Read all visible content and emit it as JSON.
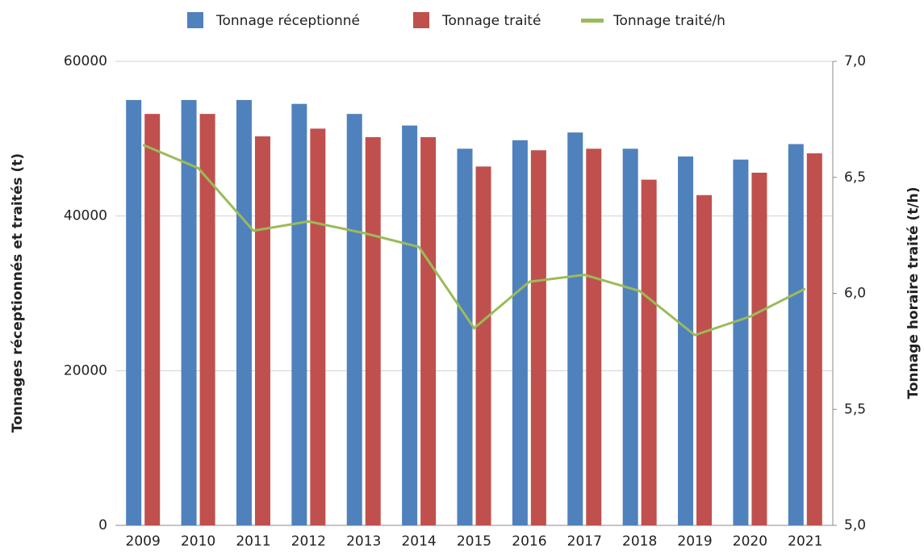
{
  "chart_data": {
    "type": "bar",
    "categories": [
      "2009",
      "2010",
      "2011",
      "2012",
      "2013",
      "2014",
      "2015",
      "2016",
      "2017",
      "2018",
      "2019",
      "2020",
      "2021"
    ],
    "series": [
      {
        "name": "Tonnage réceptionné",
        "color": "#4f81bd",
        "type": "bar",
        "values": [
          55000,
          55000,
          55000,
          54500,
          53200,
          51700,
          48700,
          49800,
          50800,
          48700,
          47700,
          47300,
          49300
        ]
      },
      {
        "name": "Tonnage traité",
        "color": "#c0504d",
        "type": "bar",
        "values": [
          53200,
          53200,
          50300,
          51300,
          50200,
          50200,
          46400,
          48500,
          48700,
          44700,
          42700,
          45600,
          48100
        ]
      },
      {
        "name": "Tonnage traité/h",
        "color": "#9bbb59",
        "type": "line",
        "axis": "y2",
        "values": [
          6.64,
          6.54,
          6.27,
          6.31,
          6.26,
          6.2,
          5.85,
          6.05,
          6.08,
          6.01,
          5.82,
          5.9,
          6.02
        ]
      }
    ],
    "ylabel": "Tonnages réceptionnés et traités (t)",
    "y2label": "Tonnage horaire traité (t/h)",
    "ylim": [
      0,
      60000
    ],
    "yticks": [
      0,
      20000,
      40000,
      60000
    ],
    "y2lim": [
      5,
      7
    ],
    "y2ticks": [
      {
        "value": 5,
        "label": "5,0"
      },
      {
        "value": 5.5,
        "label": "5,5"
      },
      {
        "value": 6,
        "label": "6,0"
      },
      {
        "value": 6.5,
        "label": "6,5"
      },
      {
        "value": 7,
        "label": "7,0"
      }
    ],
    "grid": true,
    "legend": "top"
  }
}
